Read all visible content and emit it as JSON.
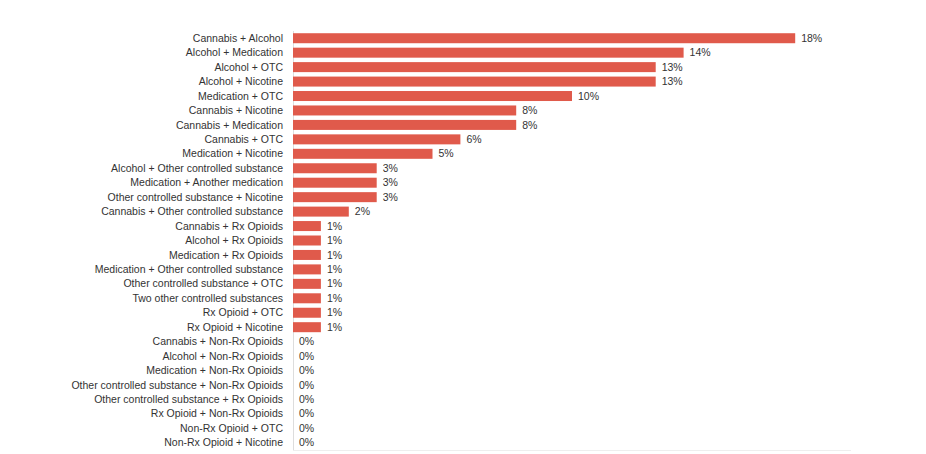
{
  "chart_data": {
    "type": "bar",
    "orientation": "horizontal",
    "categories": [
      "Cannabis + Alcohol",
      "Alcohol + Medication",
      "Alcohol + OTC",
      "Alcohol + Nicotine",
      "Medication + OTC",
      "Cannabis + Nicotine",
      "Cannabis + Medication",
      "Cannabis + OTC",
      "Medication + Nicotine",
      "Alcohol + Other controlled substance",
      "Medication + Another medication",
      "Other controlled substance + Nicotine",
      "Cannabis + Other controlled substance",
      "Cannabis + Rx Opioids",
      "Alcohol + Rx Opioids",
      "Medication + Rx Opioids",
      "Medication + Other controlled substance",
      "Other controlled substance + OTC",
      "Two other controlled substances",
      "Rx Opioid + OTC",
      "Rx Opioid + Nicotine",
      "Cannabis + Non-Rx Opioids",
      "Alcohol + Non-Rx Opioids",
      "Medication + Non-Rx Opioids",
      "Other controlled substance + Non-Rx Opioids",
      "Other controlled substance + Rx Opioids",
      "Rx Opioid + Non-Rx Opioids",
      "Non-Rx Opioid + OTC",
      "Non-Rx Opioid + Nicotine"
    ],
    "values": [
      18,
      14,
      13,
      13,
      10,
      8,
      8,
      6,
      5,
      3,
      3,
      3,
      2,
      1,
      1,
      1,
      1,
      1,
      1,
      1,
      1,
      0,
      0,
      0,
      0,
      0,
      0,
      0,
      0
    ],
    "value_labels": [
      "18%",
      "14%",
      "13%",
      "13%",
      "10%",
      "8%",
      "8%",
      "6%",
      "5%",
      "3%",
      "3%",
      "3%",
      "2%",
      "1%",
      "1%",
      "1%",
      "1%",
      "1%",
      "1%",
      "1%",
      "1%",
      "0%",
      "0%",
      "0%",
      "0%",
      "0%",
      "0%",
      "0%",
      "0%"
    ],
    "color": "#e05a4b",
    "xlim": [
      0,
      20
    ],
    "grid": false,
    "data_labels": true,
    "tick_labels": "y"
  }
}
